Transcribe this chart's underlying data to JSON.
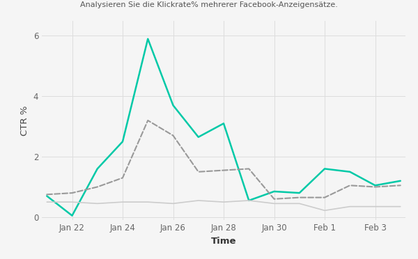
{
  "title": "Analysieren Sie die Klickrate% mehrerer Facebook-Anzeigensätze.",
  "xlabel": "Time",
  "ylabel": "CTR %",
  "background_color": "#f5f5f5",
  "grid_color": "#dddddd",
  "ylim": [
    -0.1,
    6.5
  ],
  "yticks": [
    0,
    2,
    4,
    6
  ],
  "x_labels": [
    "Jan 22",
    "Jan 24",
    "Jan 26",
    "Jan 28",
    "Jan 30",
    "Feb 1",
    "Feb 3"
  ],
  "x_tick_positions": [
    1,
    3,
    5,
    7,
    9,
    11,
    13
  ],
  "n_points": 15,
  "series": [
    {
      "name": "teal_solid",
      "color": "#00c9a7",
      "linestyle": "solid",
      "linewidth": 1.8,
      "y": [
        0.7,
        0.05,
        1.6,
        2.5,
        5.9,
        3.7,
        2.65,
        3.1,
        0.55,
        0.85,
        0.8,
        1.6,
        1.5,
        1.05,
        1.2
      ]
    },
    {
      "name": "gray_dashed",
      "color": "#999999",
      "linestyle": "dashed",
      "linewidth": 1.5,
      "y": [
        0.75,
        0.8,
        1.0,
        1.3,
        3.2,
        2.7,
        1.5,
        1.55,
        1.6,
        0.6,
        0.65,
        0.65,
        1.05,
        1.0,
        1.05
      ]
    },
    {
      "name": "light_gray_solid",
      "color": "#cccccc",
      "linestyle": "solid",
      "linewidth": 1.2,
      "y": [
        0.5,
        0.5,
        0.45,
        0.5,
        0.5,
        0.45,
        0.55,
        0.5,
        0.55,
        0.45,
        0.45,
        0.22,
        0.35,
        0.35,
        0.35
      ]
    }
  ]
}
